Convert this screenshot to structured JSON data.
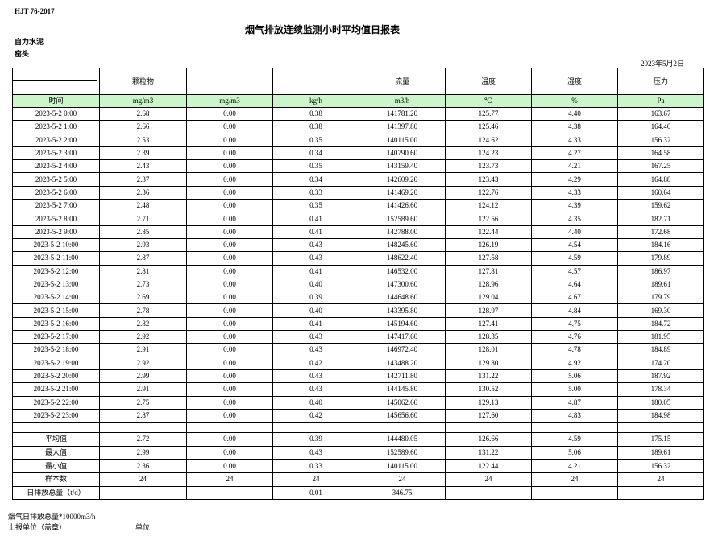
{
  "header": {
    "standard": "HJT   76-2017",
    "title": "烟气排放连续监测小时平均值日报表",
    "company": "自力水泥",
    "location": "窑头",
    "date": "2023年5月2日"
  },
  "table": {
    "time_header": "时间",
    "columns": [
      {
        "name": "颗粒物",
        "unit": "mg/m3"
      },
      {
        "unit": "mg/m3"
      },
      {
        "unit": "kg/h"
      },
      {
        "name": "流量",
        "unit": "m3/h"
      },
      {
        "name": "温度",
        "unit": "℃"
      },
      {
        "name": "湿度",
        "unit": "%"
      },
      {
        "name": "压力",
        "unit": "Pa"
      }
    ],
    "rows": [
      [
        "2023-5-2 0:00",
        "2.68",
        "0.00",
        "0.38",
        "141781.20",
        "125.77",
        "4.40",
        "163.67"
      ],
      [
        "2023-5-2 1:00",
        "2.66",
        "0.00",
        "0.38",
        "141397.80",
        "125.46",
        "4.38",
        "164.40"
      ],
      [
        "2023-5-2 2:00",
        "2.53",
        "0.00",
        "0.35",
        "140115.00",
        "124.62",
        "4.33",
        "156.32"
      ],
      [
        "2023-5-2 3:00",
        "2.39",
        "0.00",
        "0.34",
        "140790.60",
        "124.23",
        "4.27",
        "164.58"
      ],
      [
        "2023-5-2 4:00",
        "2.43",
        "0.00",
        "0.35",
        "143159.40",
        "123.73",
        "4.21",
        "167.25"
      ],
      [
        "2023-5-2 5:00",
        "2.37",
        "0.00",
        "0.34",
        "142609.20",
        "123.43",
        "4.29",
        "164.88"
      ],
      [
        "2023-5-2 6:00",
        "2.36",
        "0.00",
        "0.33",
        "141469.20",
        "122.76",
        "4.33",
        "160.64"
      ],
      [
        "2023-5-2 7:00",
        "2.48",
        "0.00",
        "0.35",
        "141426.60",
        "124.12",
        "4.39",
        "159.62"
      ],
      [
        "2023-5-2 8:00",
        "2.71",
        "0.00",
        "0.41",
        "152589.60",
        "122.56",
        "4.35",
        "182.71"
      ],
      [
        "2023-5-2 9:00",
        "2.85",
        "0.00",
        "0.41",
        "142788.00",
        "122.44",
        "4.40",
        "172.68"
      ],
      [
        "2023-5-2 10:00",
        "2.93",
        "0.00",
        "0.43",
        "148245.60",
        "126.19",
        "4.54",
        "184.16"
      ],
      [
        "2023-5-2 11:00",
        "2.87",
        "0.00",
        "0.43",
        "148622.40",
        "127.58",
        "4.59",
        "179.89"
      ],
      [
        "2023-5-2 12:00",
        "2.81",
        "0.00",
        "0.41",
        "146532.00",
        "127.81",
        "4.57",
        "186.97"
      ],
      [
        "2023-5-2 13:00",
        "2.73",
        "0.00",
        "0.40",
        "147300.60",
        "128.96",
        "4.64",
        "189.61"
      ],
      [
        "2023-5-2 14:00",
        "2.69",
        "0.00",
        "0.39",
        "144648.60",
        "129.04",
        "4.67",
        "179.79"
      ],
      [
        "2023-5-2 15:00",
        "2.78",
        "0.00",
        "0.40",
        "143395.80",
        "128.97",
        "4.84",
        "169.30"
      ],
      [
        "2023-5-2 16:00",
        "2.82",
        "0.00",
        "0.41",
        "145194.60",
        "127.41",
        "4.75",
        "184.72"
      ],
      [
        "2023-5-2 17:00",
        "2.92",
        "0.00",
        "0.43",
        "147417.60",
        "128.35",
        "4.76",
        "181.95"
      ],
      [
        "2023-5-2 18:00",
        "2.91",
        "0.00",
        "0.43",
        "146972.40",
        "128.01",
        "4.78",
        "184.89"
      ],
      [
        "2023-5-2 19:00",
        "2.92",
        "0.00",
        "0.42",
        "143488.20",
        "129.80",
        "4.92",
        "174.20"
      ],
      [
        "2023-5-2 20:00",
        "2.99",
        "0.00",
        "0.43",
        "142711.80",
        "131.22",
        "5.06",
        "187.92"
      ],
      [
        "2023-5-2 21:00",
        "2.91",
        "0.00",
        "0.43",
        "144145.80",
        "130.52",
        "5.00",
        "178.34"
      ],
      [
        "2023-5-2 22:00",
        "2.75",
        "0.00",
        "0.40",
        "145062.60",
        "129.13",
        "4.87",
        "180.05"
      ],
      [
        "2023-5-2 23:00",
        "2.87",
        "0.00",
        "0.42",
        "145656.60",
        "127.60",
        "4.83",
        "184.98"
      ]
    ],
    "summary": [
      [
        "平均值",
        "2.72",
        "0.00",
        "0.39",
        "144480.05",
        "126.66",
        "4.59",
        "175.15"
      ],
      [
        "最大值",
        "2.99",
        "0.00",
        "0.43",
        "152589.60",
        "131.22",
        "5.06",
        "189.61"
      ],
      [
        "最小值",
        "2.36",
        "0.00",
        "0.33",
        "140115.00",
        "122.44",
        "4.21",
        "156.32"
      ],
      [
        "样本数",
        "24",
        "24",
        "24",
        "24",
        "24",
        "24",
        "24"
      ]
    ],
    "daily_total": {
      "label": "日排放总量（t/d）",
      "kg_h": "0.01",
      "flow": "346.75"
    }
  },
  "footer": {
    "note": "烟气日排放总量*10000m3/h",
    "unit_label": "上报单位（盖章）",
    "unit": "单位"
  }
}
